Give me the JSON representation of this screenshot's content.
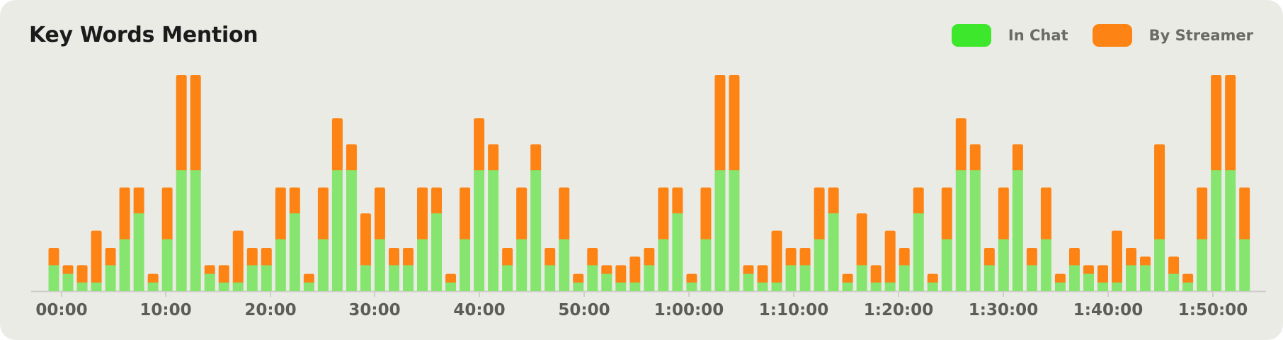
{
  "title": "Key Words Mention",
  "legend": [
    {
      "label": "In Chat",
      "color": "#3de82c"
    },
    {
      "label": "By Streamer",
      "color": "#fd8315"
    }
  ],
  "chart_data": {
    "type": "bar",
    "stacked": true,
    "title": "Key Words Mention",
    "xlabel": "",
    "ylabel": "",
    "ylim": [
      0,
      24
    ],
    "grid": false,
    "legend_position": "top-right",
    "x_tick_labels": [
      "00:00",
      "10:00",
      "20:00",
      "30:00",
      "40:00",
      "50:00",
      "1:00:00",
      "1:10:00",
      "1:20:00",
      "1:30:00",
      "1:40:00",
      "1:50:00"
    ],
    "bar_colors": {
      "In Chat": "#86e56e",
      "By Streamer": "#fd8315"
    },
    "series": [
      {
        "name": "In Chat",
        "values": [
          3,
          2,
          1,
          1,
          3,
          6,
          9,
          1,
          6,
          14,
          14,
          2,
          1,
          1,
          3,
          3,
          6,
          9,
          1,
          6,
          14,
          14,
          3,
          6,
          3,
          3,
          6,
          9,
          1,
          6,
          14,
          14,
          3,
          6,
          14,
          3,
          6,
          1,
          3,
          2,
          1,
          1,
          3,
          6,
          9,
          1,
          6,
          14,
          14,
          2,
          1,
          1,
          3,
          3,
          6,
          9,
          1,
          3,
          1,
          1,
          3,
          9,
          1,
          6,
          14,
          14,
          3,
          6,
          14,
          3,
          6,
          1,
          3,
          2,
          1,
          1,
          3,
          3,
          6,
          2,
          1,
          6,
          14,
          14,
          6
        ]
      },
      {
        "name": "By Streamer",
        "values": [
          2,
          1,
          2,
          6,
          2,
          6,
          3,
          1,
          6,
          11,
          11,
          1,
          2,
          6,
          2,
          2,
          6,
          3,
          1,
          6,
          6,
          3,
          6,
          6,
          2,
          2,
          6,
          3,
          1,
          6,
          6,
          3,
          2,
          6,
          3,
          2,
          6,
          1,
          2,
          1,
          2,
          3,
          2,
          6,
          3,
          1,
          6,
          11,
          11,
          1,
          2,
          6,
          2,
          2,
          6,
          3,
          1,
          6,
          2,
          6,
          2,
          3,
          1,
          6,
          6,
          3,
          2,
          6,
          3,
          2,
          6,
          1,
          2,
          1,
          2,
          6,
          2,
          1,
          11,
          2,
          1,
          6,
          11,
          11,
          6
        ]
      }
    ]
  }
}
